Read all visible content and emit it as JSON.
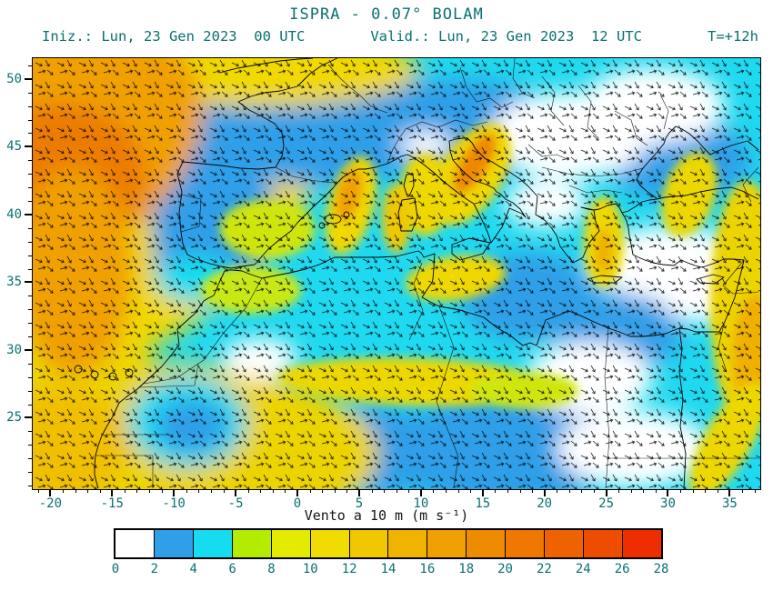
{
  "header": {
    "title": "ISPRA - 0.07° BOLAM",
    "init_label": "Iniz.: Lun, 23 Gen 2023  00 UTC",
    "valid_label": "Valid.: Lun, 23 Gen 2023  12 UTC",
    "step_label": "T=+12h"
  },
  "map": {
    "x_axis": {
      "min": -21.5,
      "max": 37.4,
      "major_ticks": [
        -20,
        -15,
        -10,
        -5,
        0,
        5,
        10,
        15,
        20,
        25,
        30,
        35
      ],
      "minor_step": 1
    },
    "y_axis": {
      "min": 19.8,
      "max": 51.6,
      "major_ticks": [
        25,
        30,
        35,
        40,
        45,
        50
      ],
      "minor_step": 1
    }
  },
  "colorbar": {
    "label": "Vento a 10 m (m s⁻¹)",
    "tick_labels": [
      "0",
      "2",
      "4",
      "6",
      "8",
      "10",
      "12",
      "14",
      "16",
      "18",
      "20",
      "22",
      "24",
      "26",
      "28"
    ],
    "segment_colors": [
      "#ffffff",
      "#2f9fe8",
      "#16dcf0",
      "#b4ec00",
      "#e4ea00",
      "#f0dc00",
      "#f0c800",
      "#f0b400",
      "#f0a000",
      "#ee8c00",
      "#ee7800",
      "#ee6200",
      "#ee4c00",
      "#ee2e00"
    ]
  },
  "colors": {
    "title_text": "#0a7070",
    "frame": "#000000",
    "sea_cyan": "#1fd9f0"
  }
}
